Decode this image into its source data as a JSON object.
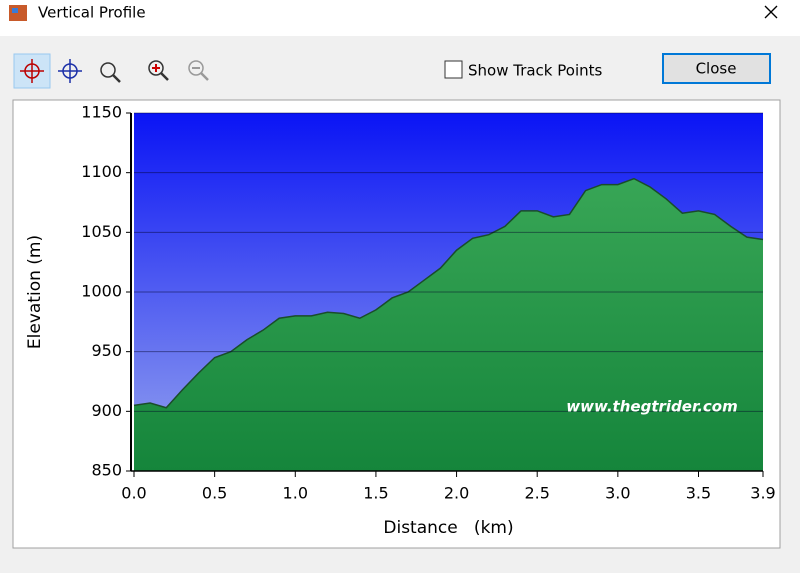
{
  "window": {
    "title": "Vertical Profile",
    "checkbox_label": "Show Track Points",
    "close_button": "Close"
  },
  "chart_data": {
    "type": "area",
    "xlabel": "Distance   (km)",
    "ylabel": "Elevation (m)",
    "annotation": "www.thegtrider.com",
    "x": [
      0.0,
      0.1,
      0.2,
      0.3,
      0.4,
      0.5,
      0.6,
      0.7,
      0.8,
      0.9,
      1.0,
      1.1,
      1.2,
      1.3,
      1.4,
      1.5,
      1.6,
      1.7,
      1.8,
      1.9,
      2.0,
      2.1,
      2.2,
      2.3,
      2.4,
      2.5,
      2.6,
      2.7,
      2.8,
      2.9,
      3.0,
      3.1,
      3.2,
      3.3,
      3.4,
      3.5,
      3.6,
      3.7,
      3.8,
      3.9
    ],
    "values": [
      905,
      907,
      903,
      918,
      932,
      945,
      950,
      960,
      968,
      978,
      980,
      980,
      983,
      982,
      978,
      985,
      995,
      1000,
      1010,
      1020,
      1035,
      1045,
      1048,
      1055,
      1068,
      1068,
      1063,
      1065,
      1085,
      1090,
      1090,
      1095,
      1088,
      1078,
      1066,
      1068,
      1065,
      1055,
      1046,
      1044
    ],
    "color": "#1f9a45",
    "xlim": [
      0,
      3.9
    ],
    "xticks": [
      {
        "value": 0,
        "label": "0.0"
      },
      0.5,
      {
        "value": 1,
        "label": "1.0"
      },
      1.5,
      {
        "value": 2,
        "label": "2.0"
      },
      2.5,
      {
        "value": 3,
        "label": "3.0"
      },
      3.5,
      3.9
    ],
    "ylim": [
      850,
      1150
    ],
    "yticks": [
      850,
      900,
      950,
      1000,
      1050,
      1100,
      1150
    ],
    "grid": true
  }
}
